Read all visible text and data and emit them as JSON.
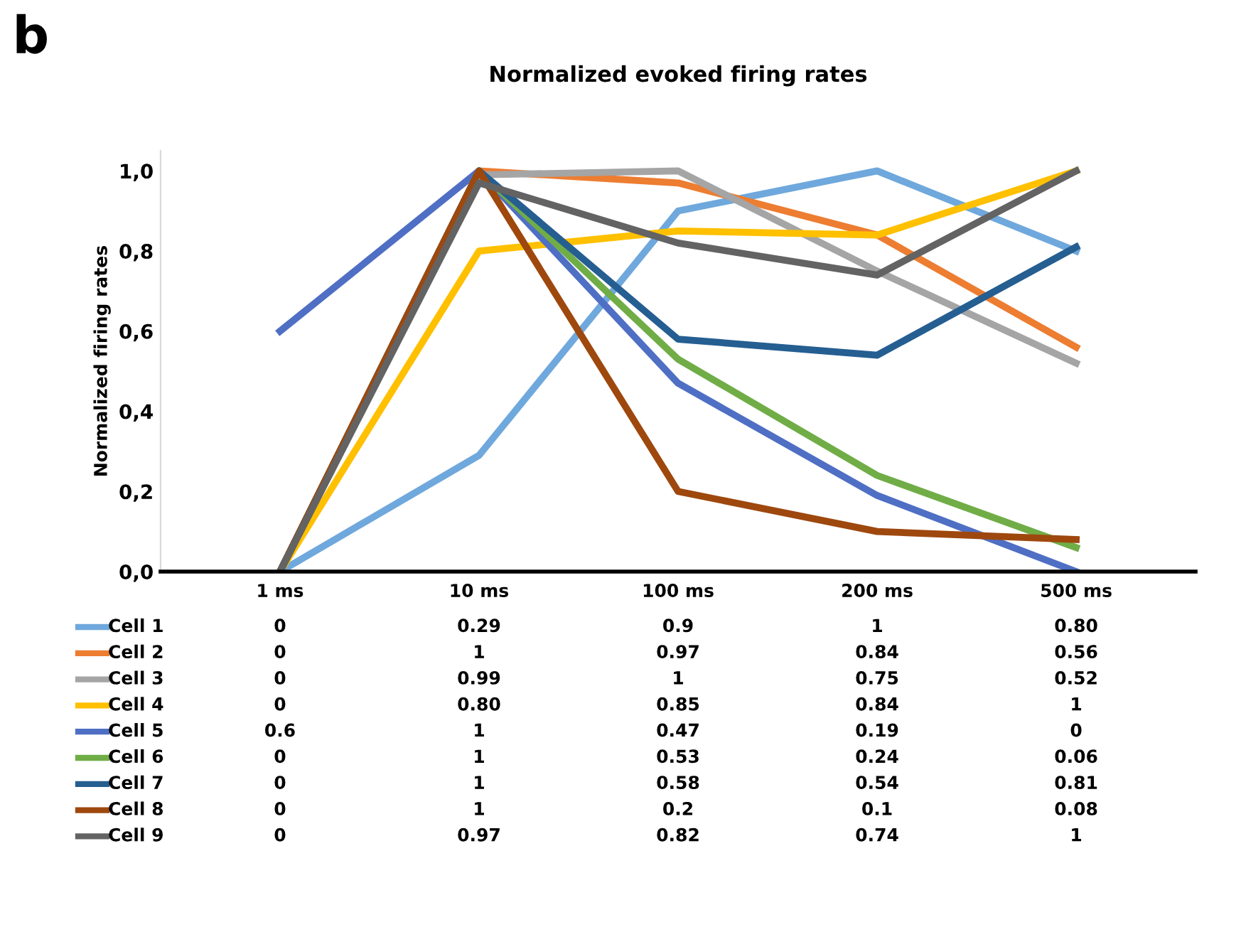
{
  "chart_data": {
    "type": "line",
    "title": "Normalized evoked firing rates",
    "ylabel": "Normalized firing rates",
    "annotations": [
      "b"
    ],
    "categories": [
      "1 ms",
      "10 ms",
      "100 ms",
      "200 ms",
      "500 ms"
    ],
    "ylim": [
      0,
      1.05
    ],
    "yticks": [
      {
        "value": 0,
        "label": "0,0"
      },
      {
        "value": 0.2,
        "label": "0,2"
      },
      {
        "value": 0.4,
        "label": "0,4"
      },
      {
        "value": 0.6,
        "label": "0,6"
      },
      {
        "value": 0.8,
        "label": "0,8"
      },
      {
        "value": 1,
        "label": "1,0"
      }
    ],
    "grid": false,
    "legend": "bottom",
    "marker": "none",
    "line_style": "solid",
    "series": [
      {
        "name": "Cell 1",
        "color": "#6fa8dc",
        "values": [
          0,
          0.29,
          0.9,
          1,
          0.8
        ],
        "value_labels": [
          "0",
          "0.29",
          "0.9",
          "1",
          "0.80"
        ]
      },
      {
        "name": "Cell 2",
        "color": "#ed7d31",
        "values": [
          0,
          1,
          0.97,
          0.84,
          0.56
        ],
        "value_labels": [
          "0",
          "1",
          "0.97",
          "0.84",
          "0.56"
        ]
      },
      {
        "name": "Cell 3",
        "color": "#a5a5a5",
        "values": [
          0,
          0.99,
          1,
          0.75,
          0.52
        ],
        "value_labels": [
          "0",
          "0.99",
          "1",
          "0.75",
          "0.52"
        ]
      },
      {
        "name": "Cell 4",
        "color": "#ffc000",
        "values": [
          0,
          0.8,
          0.85,
          0.84,
          1
        ],
        "value_labels": [
          "0",
          "0.80",
          "0.85",
          "0.84",
          "1"
        ]
      },
      {
        "name": "Cell 5",
        "color": "#4f6fc4",
        "values": [
          0.6,
          1,
          0.47,
          0.19,
          0
        ],
        "value_labels": [
          "0.6",
          "1",
          "0.47",
          "0.19",
          "0"
        ]
      },
      {
        "name": "Cell 6",
        "color": "#70ad47",
        "values": [
          0,
          1,
          0.53,
          0.24,
          0.06
        ],
        "value_labels": [
          "0",
          "1",
          "0.53",
          "0.24",
          "0.06"
        ]
      },
      {
        "name": "Cell 7",
        "color": "#255e91",
        "values": [
          0,
          1,
          0.58,
          0.54,
          0.81
        ],
        "value_labels": [
          "0",
          "1",
          "0.58",
          "0.54",
          "0.81"
        ]
      },
      {
        "name": "Cell 8",
        "color": "#9e480e",
        "values": [
          0,
          1,
          0.2,
          0.1,
          0.08
        ],
        "value_labels": [
          "0",
          "1",
          "0.2",
          "0.1",
          "0.08"
        ]
      },
      {
        "name": "Cell 9",
        "color": "#636363",
        "values": [
          0,
          0.97,
          0.82,
          0.74,
          1
        ],
        "value_labels": [
          "0",
          "0.97",
          "0.82",
          "0.74",
          "1"
        ]
      }
    ]
  }
}
